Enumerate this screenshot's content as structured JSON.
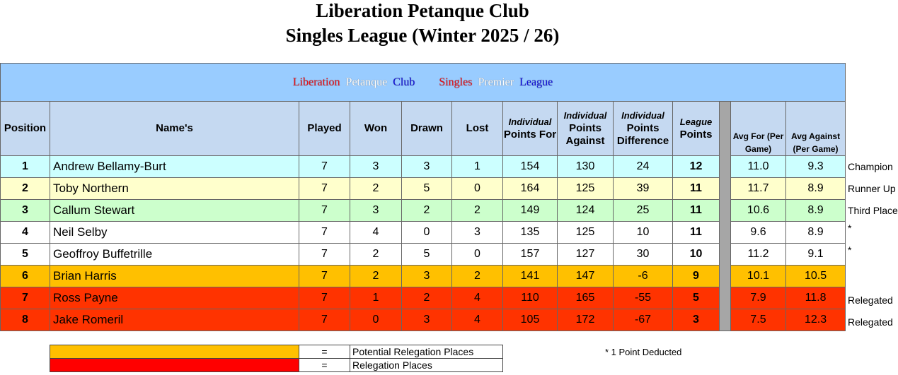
{
  "header": {
    "title": "Liberation Petanque Club",
    "subtitle": "Singles League (Winter 2025 / 26)"
  },
  "banner": [
    {
      "text": "Liberation",
      "color": "#e8101a"
    },
    {
      "text": "Petanque",
      "color": "#ffffff"
    },
    {
      "text": "Club",
      "color": "#1010e0"
    },
    {
      "text": "Singles",
      "color": "#e8101a"
    },
    {
      "text": "Premier",
      "color": "#ffffff"
    },
    {
      "text": "League",
      "color": "#1010e0"
    }
  ],
  "table": {
    "headers": [
      "Position",
      "Name's",
      "Played",
      "Won",
      "Drawn",
      "Lost",
      {
        "top": "Individual",
        "main": "Points For"
      },
      {
        "top": "Individual",
        "main": "Points Against"
      },
      {
        "top": "Individual",
        "main": "Points Difference"
      },
      {
        "top": "League",
        "main": "Points"
      },
      "Avg For (Per Game)",
      "Avg Against (Per Game)"
    ],
    "rows": [
      [
        "1",
        "Andrew Bellamy-Burt",
        "7",
        "3",
        "3",
        "1",
        "154",
        "130",
        "24",
        "12",
        "11.0",
        "9.3"
      ],
      [
        "2",
        "Toby Northern",
        "7",
        "2",
        "5",
        "0",
        "164",
        "125",
        "39",
        "11",
        "11.7",
        "8.9"
      ],
      [
        "3",
        "Callum Stewart",
        "7",
        "3",
        "2",
        "2",
        "149",
        "124",
        "25",
        "11",
        "10.6",
        "8.9"
      ],
      [
        "4",
        "Neil Selby",
        "7",
        "4",
        "0",
        "3",
        "135",
        "125",
        "10",
        "11",
        "9.6",
        "8.9"
      ],
      [
        "5",
        "Geoffroy Buffetrille",
        "7",
        "2",
        "5",
        "0",
        "157",
        "127",
        "30",
        "10",
        "11.2",
        "9.1"
      ],
      [
        "6",
        "Brian Harris",
        "7",
        "2",
        "3",
        "2",
        "141",
        "147",
        "-6",
        "9",
        "10.1",
        "10.5"
      ],
      [
        "7",
        "Ross Payne",
        "7",
        "1",
        "2",
        "4",
        "110",
        "165",
        "-55",
        "5",
        "7.9",
        "11.8"
      ],
      [
        "8",
        "Jake Romeril",
        "7",
        "0",
        "3",
        "4",
        "105",
        "172",
        "-67",
        "3",
        "7.5",
        "12.3"
      ]
    ],
    "notes": [
      "Champion",
      "Runner Up",
      "Third Place",
      "*",
      "*",
      null,
      "Relegated",
      "Relegated"
    ]
  },
  "legend": [
    {
      "symbol": "=",
      "text": "Potential Relegation Places"
    },
    {
      "symbol": "=",
      "text": "Relegation Places"
    }
  ],
  "footnote": "* 1 Point Deducted"
}
